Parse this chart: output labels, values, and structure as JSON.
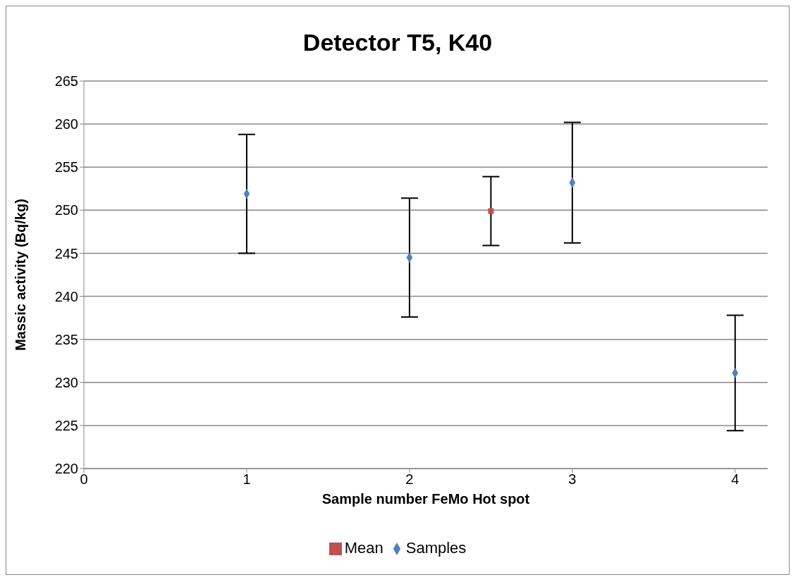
{
  "chart_data": {
    "type": "scatter",
    "title": "Detector T5, K40",
    "xlabel": "Sample number FeMo Hot spot",
    "ylabel": "Massic activity (Bq/kg)",
    "series": [
      {
        "name": "Samples",
        "color": "#4f81bd",
        "marker": "diamond",
        "x": [
          1,
          2,
          3,
          4
        ],
        "values": [
          251.9,
          244.5,
          253.2,
          231.1
        ],
        "errors": [
          6.9,
          6.9,
          7.0,
          6.7
        ]
      },
      {
        "name": "Mean",
        "color": "#c0504d",
        "marker": "square",
        "x": [
          2.5
        ],
        "values": [
          249.9
        ],
        "errors": [
          4.0
        ]
      }
    ],
    "xlim": [
      0,
      4.2
    ],
    "xticks": [
      0,
      1,
      2,
      3,
      4
    ],
    "ylim": [
      220,
      265
    ],
    "yticks": [
      220,
      225,
      230,
      235,
      240,
      245,
      250,
      255,
      260,
      265
    ],
    "grid": "y",
    "legend": "bottom"
  }
}
